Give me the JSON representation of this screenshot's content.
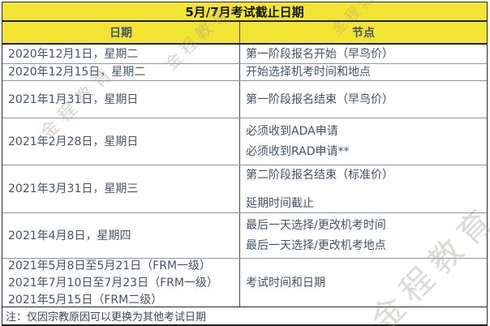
{
  "title": "5月/7月考试截止日期",
  "table": {
    "headers": {
      "date": "日期",
      "node": "节点"
    },
    "rows": [
      {
        "date_lines": [
          "2020年12月1日，星期二"
        ],
        "node_lines": [
          "第一阶段报名开始（早鸟价）"
        ]
      },
      {
        "date_lines": [
          "2020年12月15日，星期二"
        ],
        "node_lines": [
          "开始选择机考时间和地点"
        ]
      },
      {
        "date_lines": [
          "2021年1月31日，星期日"
        ],
        "node_lines": [
          "第一阶段报名结束（早鸟价）"
        ]
      },
      {
        "date_lines": [
          "2021年2月28日，星期日"
        ],
        "node_lines": [
          "必须收到ADA申请",
          "必须收到RAD申请**"
        ]
      },
      {
        "date_lines": [
          "2021年3月31日，星期三"
        ],
        "node_lines": [
          "第二阶段报名结束（标准价）",
          "延期时间截止"
        ]
      },
      {
        "date_lines": [
          "2021年4月8日，星期四"
        ],
        "node_lines": [
          "最后一天选择/更改机考时间",
          "最后一天选择/更改机考地点"
        ]
      },
      {
        "date_lines": [
          "2021年5月8日至5月21日（FRM一级）",
          "2021年7月10日至7月23日（FRM一级）",
          "2021年5月15日（FRM二级）"
        ],
        "node_lines": [
          "考试时间和日期"
        ]
      }
    ],
    "note": "注：仅因宗教原因可以更换为其他考试日期"
  },
  "watermark": {
    "text": "金程教育"
  },
  "colors": {
    "header_yellow": "#F2E432",
    "body_text": "#44546A",
    "dark_border": "#1F1F1F",
    "row_line": "#8C95A5"
  }
}
